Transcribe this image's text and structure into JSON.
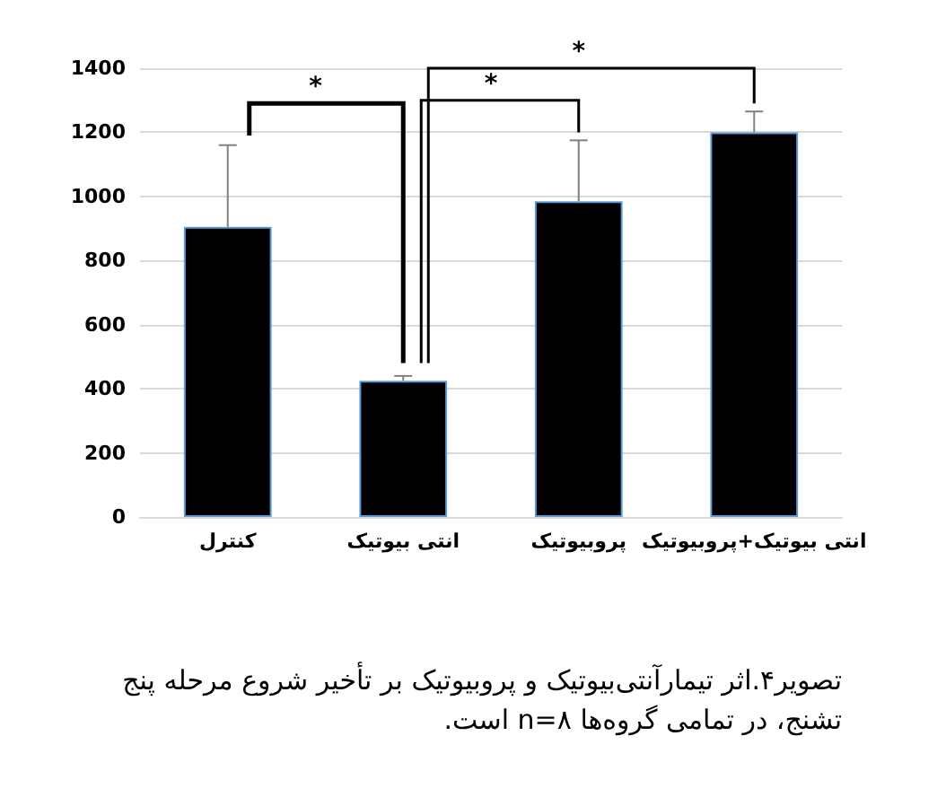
{
  "chart_data": {
    "type": "bar",
    "categories": [
      "کنترل",
      "انتی بیوتیک",
      "پروبیوتیک",
      "انتی بیوتیک+پروبیوتیک"
    ],
    "values": [
      905,
      425,
      985,
      1200
    ],
    "errors": [
      [
        905,
        1160
      ],
      [
        425,
        440
      ],
      [
        985,
        1175
      ],
      [
        1200,
        1265
      ]
    ],
    "color": "#000000",
    "ylim": [
      0,
      1400
    ],
    "yticks": [
      0,
      200,
      400,
      600,
      800,
      1000,
      1200,
      1400
    ],
    "grid": "y",
    "annotations": [
      "*",
      "*",
      "*",
      "تصویر۴.اثر تیمارآنتی‌بیوتیک و پروبیوتیک بر تأخیر شروع مرحله پنج تشنج، در تمامی گروه‌ها n=۸ است."
    ]
  }
}
